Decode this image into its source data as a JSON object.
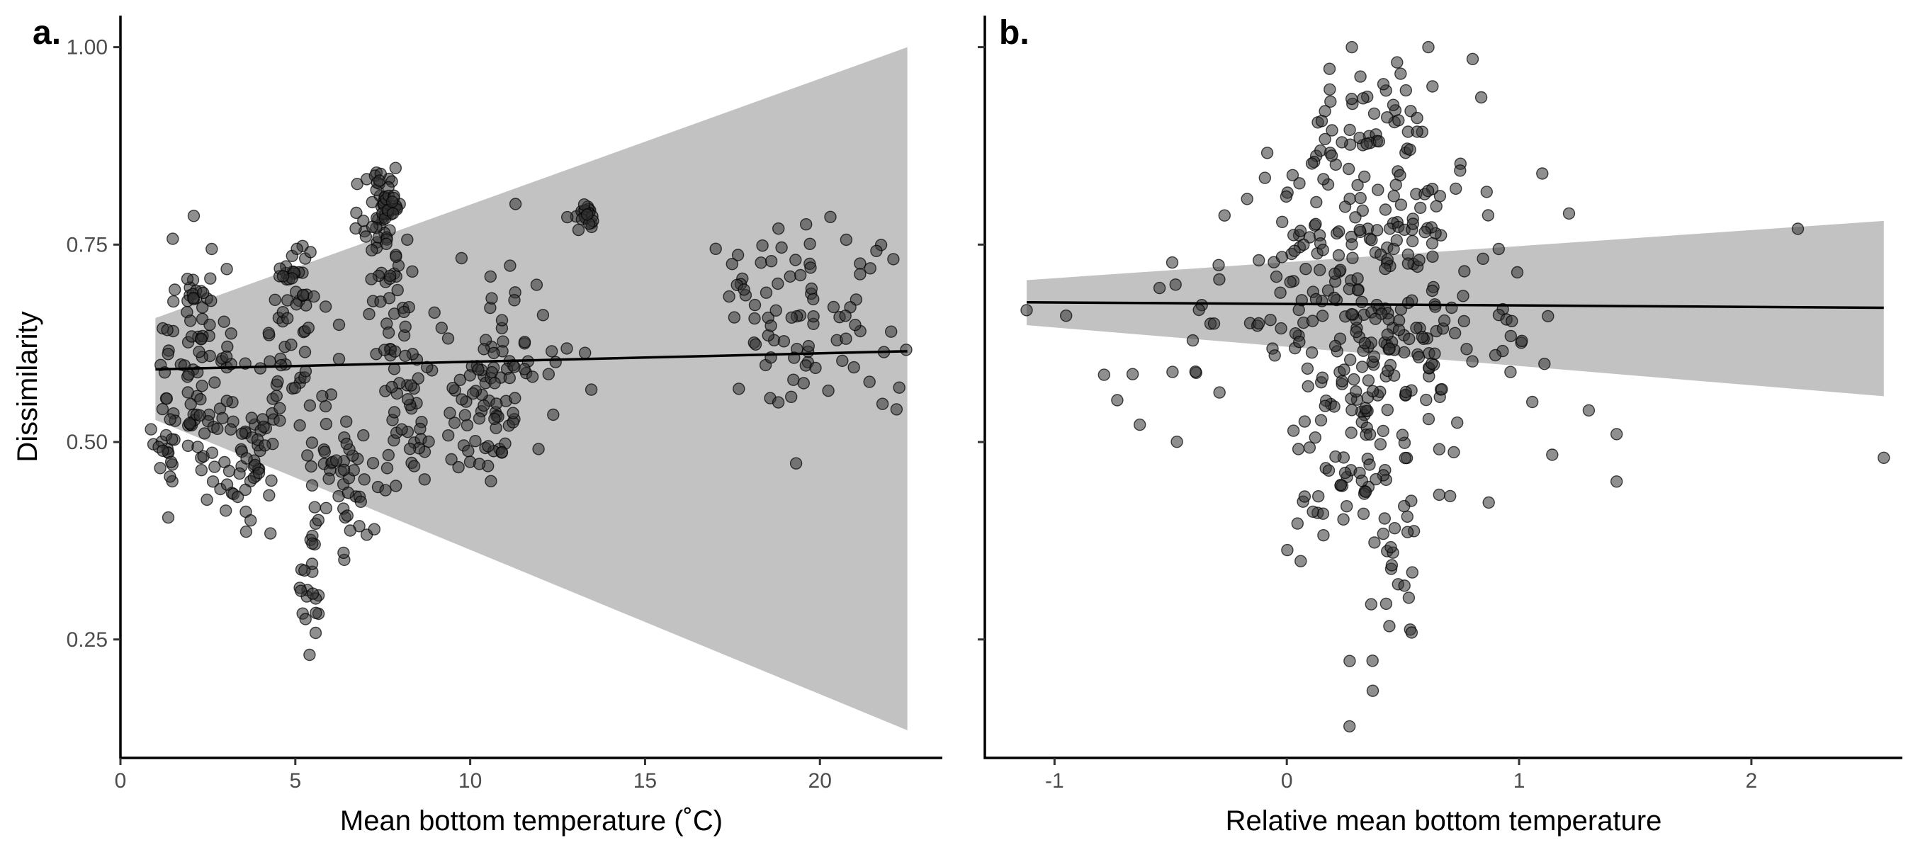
{
  "colors": {
    "point_fill": "#333333",
    "point_stroke": "#000000",
    "ribbon": "#c2c2c2",
    "trend_line": "#000000",
    "axis": "#000000"
  },
  "chart_data": [
    {
      "type": "scatter",
      "panel_label": "a.",
      "xlabel": "Mean bottom temperature (˚C)",
      "ylabel": "Dissimilarity",
      "xlim": [
        0,
        23.5
      ],
      "ylim": [
        0.1,
        1.04
      ],
      "xticks": [
        0,
        5,
        10,
        15,
        20
      ],
      "xtick_labels": [
        "0",
        "5",
        "10",
        "15",
        "20"
      ],
      "yticks": [
        0.25,
        0.5,
        0.75,
        1.0
      ],
      "ytick_labels": [
        "0.25",
        "0.50",
        "0.75",
        "1.00"
      ],
      "grid": false,
      "legend": "none",
      "trend_line": {
        "x": [
          1.0,
          22.5
        ],
        "y": [
          0.592,
          0.615
        ]
      },
      "confidence_band": {
        "x": [
          1.0,
          22.5
        ],
        "lower": [
          0.528,
          0.135
        ],
        "upper": [
          0.657,
          1.0
        ]
      },
      "clusters": [
        {
          "x": 1.3,
          "y": 0.54,
          "sx": 0.2,
          "sy": 0.07,
          "n": 30
        },
        {
          "x": 2.1,
          "y": 0.66,
          "sx": 0.25,
          "sy": 0.05,
          "n": 40
        },
        {
          "x": 2.3,
          "y": 0.52,
          "sx": 0.3,
          "sy": 0.05,
          "n": 25
        },
        {
          "x": 2.9,
          "y": 0.6,
          "sx": 0.3,
          "sy": 0.06,
          "n": 20
        },
        {
          "x": 3.2,
          "y": 0.43,
          "sx": 0.3,
          "sy": 0.025,
          "n": 12
        },
        {
          "x": 4.0,
          "y": 0.49,
          "sx": 0.35,
          "sy": 0.04,
          "n": 35
        },
        {
          "x": 4.7,
          "y": 0.62,
          "sx": 0.4,
          "sy": 0.05,
          "n": 30
        },
        {
          "x": 5.0,
          "y": 0.71,
          "sx": 0.3,
          "sy": 0.025,
          "n": 25
        },
        {
          "x": 5.5,
          "y": 0.31,
          "sx": 0.15,
          "sy": 0.05,
          "n": 22
        },
        {
          "x": 6.0,
          "y": 0.52,
          "sx": 0.5,
          "sy": 0.08,
          "n": 30
        },
        {
          "x": 6.6,
          "y": 0.43,
          "sx": 0.3,
          "sy": 0.04,
          "n": 25
        },
        {
          "x": 7.5,
          "y": 0.8,
          "sx": 0.3,
          "sy": 0.035,
          "n": 55
        },
        {
          "x": 7.6,
          "y": 0.7,
          "sx": 0.4,
          "sy": 0.05,
          "n": 25
        },
        {
          "x": 8.2,
          "y": 0.58,
          "sx": 0.4,
          "sy": 0.08,
          "n": 50
        },
        {
          "x": 9.5,
          "y": 0.5,
          "sx": 0.4,
          "sy": 0.05,
          "n": 15
        },
        {
          "x": 10.6,
          "y": 0.6,
          "sx": 0.6,
          "sy": 0.06,
          "n": 45
        },
        {
          "x": 10.5,
          "y": 0.5,
          "sx": 0.4,
          "sy": 0.03,
          "n": 15
        },
        {
          "x": 11.7,
          "y": 0.62,
          "sx": 0.6,
          "sy": 0.06,
          "n": 25
        },
        {
          "x": 13.3,
          "y": 0.785,
          "sx": 0.18,
          "sy": 0.01,
          "n": 22
        },
        {
          "x": 17.8,
          "y": 0.67,
          "sx": 0.5,
          "sy": 0.05,
          "n": 15
        },
        {
          "x": 19.5,
          "y": 0.67,
          "sx": 0.9,
          "sy": 0.06,
          "n": 55
        },
        {
          "x": 21.4,
          "y": 0.66,
          "sx": 0.5,
          "sy": 0.06,
          "n": 15
        }
      ]
    },
    {
      "type": "scatter",
      "panel_label": "b.",
      "xlabel": "Relative mean bottom temperature",
      "ylabel": "",
      "xlim": [
        -1.3,
        2.65
      ],
      "ylim": [
        0.1,
        1.04
      ],
      "xticks": [
        -1,
        0,
        1,
        2
      ],
      "xtick_labels": [
        "-1",
        "0",
        "1",
        "2"
      ],
      "yticks": [
        0.25,
        0.5,
        0.75,
        1.0
      ],
      "grid": false,
      "legend": "none",
      "trend_line": {
        "x": [
          -1.12,
          2.57
        ],
        "y": [
          0.677,
          0.67
        ]
      },
      "confidence_band": {
        "x": [
          -1.12,
          2.57
        ],
        "lower": [
          0.648,
          0.558
        ],
        "upper": [
          0.705,
          0.78
        ]
      },
      "clusters": [
        {
          "x": 0.4,
          "y": 0.9,
          "sx": 0.15,
          "sy": 0.04,
          "n": 40
        },
        {
          "x": 0.35,
          "y": 0.8,
          "sx": 0.18,
          "sy": 0.06,
          "n": 70
        },
        {
          "x": 0.35,
          "y": 0.68,
          "sx": 0.22,
          "sy": 0.05,
          "n": 80
        },
        {
          "x": 0.35,
          "y": 0.55,
          "sx": 0.2,
          "sy": 0.06,
          "n": 80
        },
        {
          "x": 0.4,
          "y": 0.43,
          "sx": 0.18,
          "sy": 0.05,
          "n": 40
        },
        {
          "x": 0.42,
          "y": 0.28,
          "sx": 0.08,
          "sy": 0.05,
          "n": 15
        },
        {
          "x": 0.0,
          "y": 0.7,
          "sx": 0.2,
          "sy": 0.1,
          "n": 35
        },
        {
          "x": 0.7,
          "y": 0.7,
          "sx": 0.2,
          "sy": 0.1,
          "n": 35
        },
        {
          "x": -0.5,
          "y": 0.62,
          "sx": 0.2,
          "sy": 0.08,
          "n": 15
        },
        {
          "x": 0.9,
          "y": 0.55,
          "sx": 0.2,
          "sy": 0.1,
          "n": 12
        }
      ],
      "points": [
        {
          "x": -1.12,
          "y": 0.667
        },
        {
          "x": -0.95,
          "y": 0.66
        },
        {
          "x": -0.73,
          "y": 0.553
        },
        {
          "x": 1.3,
          "y": 0.54
        },
        {
          "x": 1.42,
          "y": 0.51
        },
        {
          "x": 1.42,
          "y": 0.45
        },
        {
          "x": 2.2,
          "y": 0.77
        },
        {
          "x": 2.57,
          "y": 0.48
        },
        {
          "x": 0.27,
          "y": 0.14
        },
        {
          "x": 0.37,
          "y": 0.185
        },
        {
          "x": 1.1,
          "y": 0.84
        },
        {
          "x": 0.8,
          "y": 0.985
        },
        {
          "x": 0.28,
          "y": 1.0
        }
      ]
    }
  ]
}
